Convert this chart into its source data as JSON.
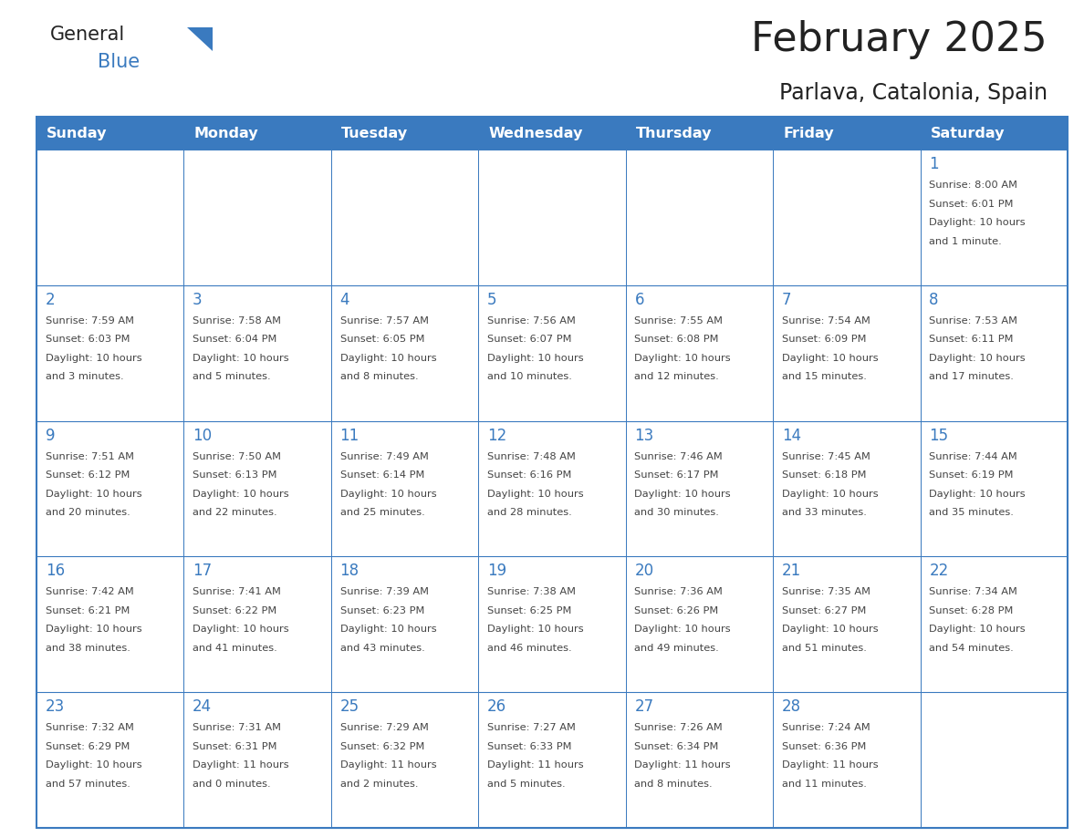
{
  "title": "February 2025",
  "subtitle": "Parlava, Catalonia, Spain",
  "header_bg": "#3a7abf",
  "header_text": "#ffffff",
  "border_color": "#3a7abf",
  "day_headers": [
    "Sunday",
    "Monday",
    "Tuesday",
    "Wednesday",
    "Thursday",
    "Friday",
    "Saturday"
  ],
  "title_color": "#222222",
  "subtitle_color": "#222222",
  "cell_text_color": "#444444",
  "day_num_color": "#3a7abf",
  "logo_general_color": "#222222",
  "logo_blue_color": "#3a7abf",
  "logo_triangle_color": "#3a7abf",
  "calendar_data": [
    [
      null,
      null,
      null,
      null,
      null,
      null,
      {
        "day": "1",
        "sunrise": "8:00 AM",
        "sunset": "6:01 PM",
        "daylight_l1": "10 hours",
        "daylight_l2": "and 1 minute."
      }
    ],
    [
      {
        "day": "2",
        "sunrise": "7:59 AM",
        "sunset": "6:03 PM",
        "daylight_l1": "10 hours",
        "daylight_l2": "and 3 minutes."
      },
      {
        "day": "3",
        "sunrise": "7:58 AM",
        "sunset": "6:04 PM",
        "daylight_l1": "10 hours",
        "daylight_l2": "and 5 minutes."
      },
      {
        "day": "4",
        "sunrise": "7:57 AM",
        "sunset": "6:05 PM",
        "daylight_l1": "10 hours",
        "daylight_l2": "and 8 minutes."
      },
      {
        "day": "5",
        "sunrise": "7:56 AM",
        "sunset": "6:07 PM",
        "daylight_l1": "10 hours",
        "daylight_l2": "and 10 minutes."
      },
      {
        "day": "6",
        "sunrise": "7:55 AM",
        "sunset": "6:08 PM",
        "daylight_l1": "10 hours",
        "daylight_l2": "and 12 minutes."
      },
      {
        "day": "7",
        "sunrise": "7:54 AM",
        "sunset": "6:09 PM",
        "daylight_l1": "10 hours",
        "daylight_l2": "and 15 minutes."
      },
      {
        "day": "8",
        "sunrise": "7:53 AM",
        "sunset": "6:11 PM",
        "daylight_l1": "10 hours",
        "daylight_l2": "and 17 minutes."
      }
    ],
    [
      {
        "day": "9",
        "sunrise": "7:51 AM",
        "sunset": "6:12 PM",
        "daylight_l1": "10 hours",
        "daylight_l2": "and 20 minutes."
      },
      {
        "day": "10",
        "sunrise": "7:50 AM",
        "sunset": "6:13 PM",
        "daylight_l1": "10 hours",
        "daylight_l2": "and 22 minutes."
      },
      {
        "day": "11",
        "sunrise": "7:49 AM",
        "sunset": "6:14 PM",
        "daylight_l1": "10 hours",
        "daylight_l2": "and 25 minutes."
      },
      {
        "day": "12",
        "sunrise": "7:48 AM",
        "sunset": "6:16 PM",
        "daylight_l1": "10 hours",
        "daylight_l2": "and 28 minutes."
      },
      {
        "day": "13",
        "sunrise": "7:46 AM",
        "sunset": "6:17 PM",
        "daylight_l1": "10 hours",
        "daylight_l2": "and 30 minutes."
      },
      {
        "day": "14",
        "sunrise": "7:45 AM",
        "sunset": "6:18 PM",
        "daylight_l1": "10 hours",
        "daylight_l2": "and 33 minutes."
      },
      {
        "day": "15",
        "sunrise": "7:44 AM",
        "sunset": "6:19 PM",
        "daylight_l1": "10 hours",
        "daylight_l2": "and 35 minutes."
      }
    ],
    [
      {
        "day": "16",
        "sunrise": "7:42 AM",
        "sunset": "6:21 PM",
        "daylight_l1": "10 hours",
        "daylight_l2": "and 38 minutes."
      },
      {
        "day": "17",
        "sunrise": "7:41 AM",
        "sunset": "6:22 PM",
        "daylight_l1": "10 hours",
        "daylight_l2": "and 41 minutes."
      },
      {
        "day": "18",
        "sunrise": "7:39 AM",
        "sunset": "6:23 PM",
        "daylight_l1": "10 hours",
        "daylight_l2": "and 43 minutes."
      },
      {
        "day": "19",
        "sunrise": "7:38 AM",
        "sunset": "6:25 PM",
        "daylight_l1": "10 hours",
        "daylight_l2": "and 46 minutes."
      },
      {
        "day": "20",
        "sunrise": "7:36 AM",
        "sunset": "6:26 PM",
        "daylight_l1": "10 hours",
        "daylight_l2": "and 49 minutes."
      },
      {
        "day": "21",
        "sunrise": "7:35 AM",
        "sunset": "6:27 PM",
        "daylight_l1": "10 hours",
        "daylight_l2": "and 51 minutes."
      },
      {
        "day": "22",
        "sunrise": "7:34 AM",
        "sunset": "6:28 PM",
        "daylight_l1": "10 hours",
        "daylight_l2": "and 54 minutes."
      }
    ],
    [
      {
        "day": "23",
        "sunrise": "7:32 AM",
        "sunset": "6:29 PM",
        "daylight_l1": "10 hours",
        "daylight_l2": "and 57 minutes."
      },
      {
        "day": "24",
        "sunrise": "7:31 AM",
        "sunset": "6:31 PM",
        "daylight_l1": "11 hours",
        "daylight_l2": "and 0 minutes."
      },
      {
        "day": "25",
        "sunrise": "7:29 AM",
        "sunset": "6:32 PM",
        "daylight_l1": "11 hours",
        "daylight_l2": "and 2 minutes."
      },
      {
        "day": "26",
        "sunrise": "7:27 AM",
        "sunset": "6:33 PM",
        "daylight_l1": "11 hours",
        "daylight_l2": "and 5 minutes."
      },
      {
        "day": "27",
        "sunrise": "7:26 AM",
        "sunset": "6:34 PM",
        "daylight_l1": "11 hours",
        "daylight_l2": "and 8 minutes."
      },
      {
        "day": "28",
        "sunrise": "7:24 AM",
        "sunset": "6:36 PM",
        "daylight_l1": "11 hours",
        "daylight_l2": "and 11 minutes."
      },
      null
    ]
  ]
}
